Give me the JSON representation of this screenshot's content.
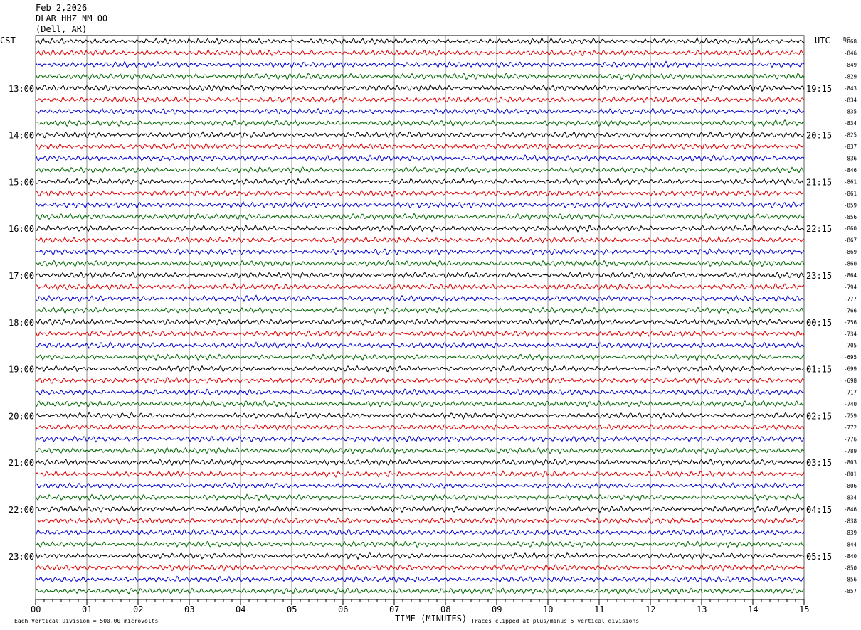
{
  "header": {
    "date": "Feb 2,2026",
    "station": "DLAR HHZ NM 00",
    "location": "(Dell, AR)"
  },
  "chart_data": {
    "type": "line",
    "title": "",
    "left_axis_label": "CST",
    "right_axis_label": "UTC",
    "dc_label": "DC",
    "xlabel": "TIME (MINUTES)",
    "x_ticks": [
      "00",
      "01",
      "02",
      "03",
      "04",
      "05",
      "06",
      "07",
      "08",
      "09",
      "10",
      "11",
      "12",
      "13",
      "14",
      "15"
    ],
    "xlim": [
      0,
      15
    ],
    "row_count": 48,
    "trace_colors": [
      "#000000",
      "#dd0000",
      "#0000cc",
      "#006600"
    ],
    "left_hour_labels": [
      {
        "row": 4,
        "text": "13:00"
      },
      {
        "row": 8,
        "text": "14:00"
      },
      {
        "row": 12,
        "text": "15:00"
      },
      {
        "row": 16,
        "text": "16:00"
      },
      {
        "row": 20,
        "text": "17:00"
      },
      {
        "row": 24,
        "text": "18:00"
      },
      {
        "row": 28,
        "text": "19:00"
      },
      {
        "row": 32,
        "text": "20:00"
      },
      {
        "row": 36,
        "text": "21:00"
      },
      {
        "row": 40,
        "text": "22:00"
      },
      {
        "row": 44,
        "text": "23:00"
      }
    ],
    "right_hour_labels": [
      {
        "row": 4,
        "text": "19:15"
      },
      {
        "row": 8,
        "text": "20:15"
      },
      {
        "row": 12,
        "text": "21:15"
      },
      {
        "row": 16,
        "text": "22:15"
      },
      {
        "row": 20,
        "text": "23:15"
      },
      {
        "row": 24,
        "text": "00:15"
      },
      {
        "row": 28,
        "text": "01:15"
      },
      {
        "row": 32,
        "text": "02:15"
      },
      {
        "row": 36,
        "text": "03:15"
      },
      {
        "row": 40,
        "text": "04:15"
      },
      {
        "row": 44,
        "text": "05:15"
      }
    ],
    "dc_values": [
      "-868",
      "-846",
      "-849",
      "-829",
      "-843",
      "-834",
      "-835",
      "-834",
      "-825",
      "-837",
      "-836",
      "-846",
      "-861",
      "-861",
      "-859",
      "-856",
      "-860",
      "-867",
      "-869",
      "-860",
      "-864",
      "-794",
      "-777",
      "-766",
      "-756",
      "-734",
      "-705",
      "-695",
      "-699",
      "-698",
      "-717",
      "-740",
      "-759",
      "-772",
      "-776",
      "-789",
      "-803",
      "-801",
      "-806",
      "-834",
      "-846",
      "-838",
      "-839",
      "-844",
      "-840",
      "-850",
      "-856",
      "-857"
    ],
    "scale_note": "Each Vertical Division =  500.00 microvolts",
    "clip_note": "Traces clipped at plus/minus 5 vertical divisions",
    "grid": true
  }
}
